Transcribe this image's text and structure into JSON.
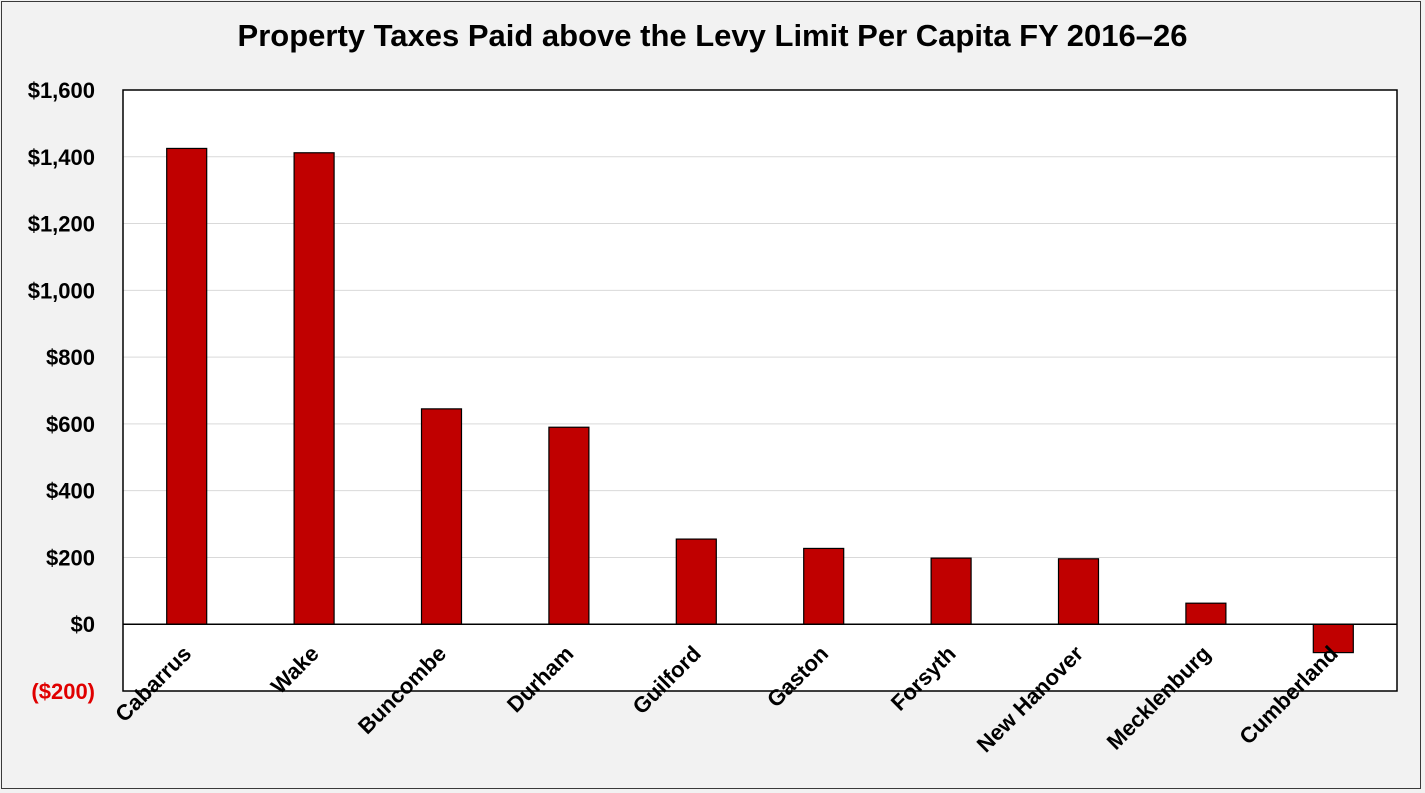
{
  "chart_data": {
    "type": "bar",
    "title": "Property Taxes Paid above the Levy Limit Per Capita FY 2016–26",
    "xlabel": "",
    "ylabel": "",
    "categories": [
      "Cabarrus",
      "Wake",
      "Buncombe",
      "Durham",
      "Guilford",
      "Gaston",
      "Forsyth",
      "New Hanover",
      "Mecklenburg",
      "Cumberland"
    ],
    "values": [
      1425,
      1412,
      645,
      590,
      255,
      227,
      198,
      196,
      63,
      -85
    ],
    "ylim": [
      -200,
      1600
    ],
    "yticks": [
      {
        "value": 1600,
        "label": "$1,600"
      },
      {
        "value": 1400,
        "label": "$1,400"
      },
      {
        "value": 1200,
        "label": "$1,200"
      },
      {
        "value": 1000,
        "label": "$1,000"
      },
      {
        "value": 800,
        "label": "$800"
      },
      {
        "value": 600,
        "label": "$600"
      },
      {
        "value": 400,
        "label": "$400"
      },
      {
        "value": 200,
        "label": "$200"
      },
      {
        "value": 0,
        "label": "$0"
      },
      {
        "value": -200,
        "label": "($200)"
      }
    ],
    "grid": true,
    "legend": "none",
    "colors": {
      "bar_fill": "#c00000",
      "bar_stroke": "#000000",
      "gridline": "#d9d9d9",
      "negative_tick": "#e00000",
      "positive_tick": "#000000"
    }
  }
}
